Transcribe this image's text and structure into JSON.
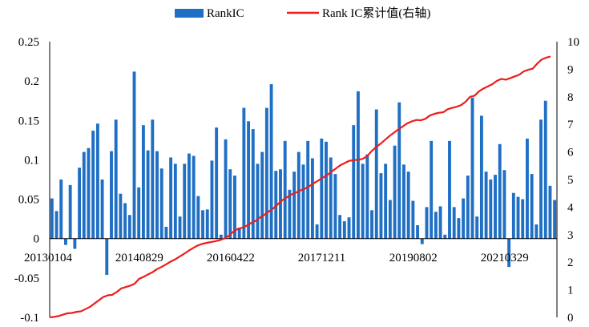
{
  "chart_data": {
    "type": "bar",
    "title": "",
    "legend": {
      "placement": "top",
      "entries": [
        {
          "label": "RankIC",
          "kind": "bar",
          "color": "#1f6fc5"
        },
        {
          "label": "Rank IC累计值(右轴)",
          "kind": "line",
          "color": "#ee1c1c"
        }
      ]
    },
    "x_ticks": [
      "20130104",
      "20140829",
      "20160422",
      "20171211",
      "20190802",
      "20210329"
    ],
    "left_axis": {
      "ylim": [
        -0.1,
        0.25
      ],
      "ticks": [
        "-0.1",
        "-0.05",
        "0",
        "0.05",
        "0.1",
        "0.15",
        "0.2",
        "0.25"
      ]
    },
    "right_axis": {
      "ylim": [
        0,
        10
      ],
      "ticks": [
        "0",
        "1",
        "2",
        "3",
        "4",
        "5",
        "6",
        "7",
        "8",
        "9",
        "10"
      ]
    },
    "grid": false,
    "series": [
      {
        "name": "RankIC",
        "type": "bar",
        "axis": "left",
        "color": "#1f6fc5",
        "values": [
          0.051,
          0.035,
          0.075,
          -0.008,
          0.068,
          -0.013,
          0.09,
          0.11,
          0.115,
          0.137,
          0.146,
          0.075,
          -0.046,
          0.111,
          0.151,
          0.057,
          0.045,
          0.03,
          0.212,
          0.065,
          0.144,
          0.112,
          0.151,
          0.111,
          0.089,
          0.015,
          0.103,
          0.095,
          0.028,
          0.095,
          0.108,
          0.105,
          0.054,
          0.036,
          0.037,
          0.099,
          0.141,
          0.005,
          0.126,
          0.088,
          0.08,
          0.014,
          0.166,
          0.149,
          0.139,
          0.095,
          0.11,
          0.166,
          0.196,
          0.086,
          0.088,
          0.124,
          0.062,
          0.085,
          0.11,
          0.094,
          0.124,
          0.102,
          0.018,
          0.127,
          0.123,
          0.103,
          0.082,
          0.03,
          0.022,
          0.027,
          0.144,
          0.187,
          0.095,
          0.107,
          0.036,
          0.164,
          0.083,
          0.095,
          0.049,
          0.118,
          0.173,
          0.094,
          0.085,
          0.048,
          0.017,
          -0.007,
          0.04,
          0.124,
          0.034,
          0.041,
          0.005,
          0.124,
          0.04,
          0.026,
          0.051,
          0.08,
          0.179,
          0.028,
          0.156,
          0.085,
          0.075,
          0.081,
          0.12,
          0.087,
          -0.036,
          0.058,
          0.053,
          0.05,
          0.127,
          0.082,
          0.018,
          0.151,
          0.175,
          0.067,
          0.049
        ]
      },
      {
        "name": "Rank IC累计值(右轴)",
        "type": "line",
        "axis": "right",
        "color": "#ee1c1c",
        "values": [
          0.0,
          0.02,
          0.05,
          0.1,
          0.15,
          0.16,
          0.2,
          0.22,
          0.3,
          0.38,
          0.5,
          0.62,
          0.74,
          0.8,
          0.82,
          0.92,
          1.05,
          1.1,
          1.15,
          1.22,
          1.4,
          1.47,
          1.56,
          1.64,
          1.75,
          1.83,
          1.92,
          2.02,
          2.1,
          2.2,
          2.3,
          2.41,
          2.51,
          2.6,
          2.66,
          2.7,
          2.73,
          2.76,
          2.8,
          2.86,
          2.95,
          3.1,
          3.2,
          3.25,
          3.32,
          3.42,
          3.5,
          3.62,
          3.72,
          3.84,
          3.95,
          4.1,
          4.25,
          4.35,
          4.45,
          4.52,
          4.6,
          4.66,
          4.75,
          4.86,
          4.96,
          5.06,
          5.16,
          5.28,
          5.4,
          5.52,
          5.6,
          5.68,
          5.7,
          5.72,
          5.75,
          5.85,
          6.03,
          6.18,
          6.3,
          6.44,
          6.58,
          6.7,
          6.82,
          6.93,
          7.04,
          7.11,
          7.16,
          7.15,
          7.2,
          7.32,
          7.38,
          7.42,
          7.44,
          7.55,
          7.6,
          7.64,
          7.7,
          7.82,
          8.0,
          8.04,
          8.2,
          8.3,
          8.38,
          8.46,
          8.58,
          8.65,
          8.62,
          8.68,
          8.74,
          8.8,
          8.92,
          8.98,
          9.02,
          9.2,
          9.35,
          9.42,
          9.46
        ]
      }
    ]
  }
}
